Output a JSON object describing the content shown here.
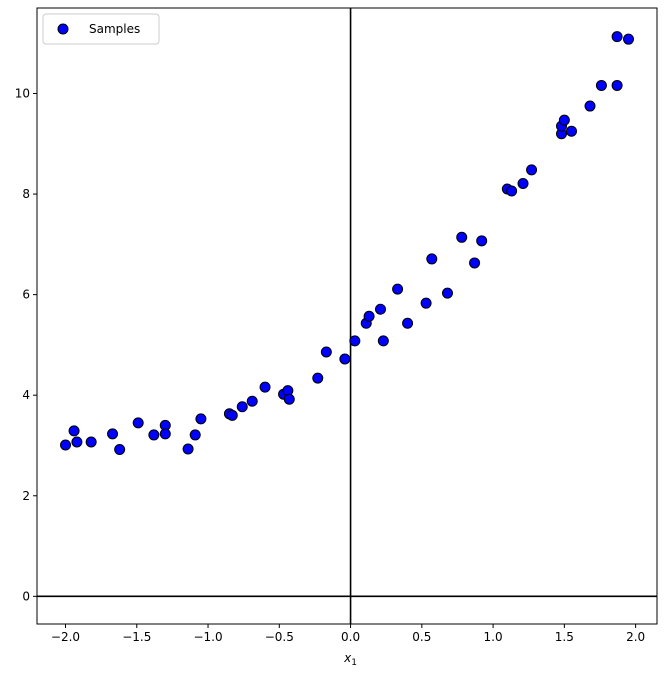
{
  "chart_data": {
    "type": "scatter",
    "title": "",
    "xlabel": "x",
    "xlabel_sub": "1",
    "ylabel": "",
    "xlim": [
      -2.2,
      2.15
    ],
    "ylim": [
      -0.55,
      11.7
    ],
    "xticks": [
      -2.0,
      -1.5,
      -1.0,
      -0.5,
      0.0,
      0.5,
      1.0,
      1.5,
      2.0
    ],
    "yticks": [
      0,
      2,
      4,
      6,
      8,
      10
    ],
    "grid": false,
    "reference_lines": {
      "x": 0,
      "y": 0
    },
    "legend": {
      "position": "top-left",
      "entries": [
        "Samples"
      ]
    },
    "series": [
      {
        "name": "Samples",
        "color": "#0000ff",
        "edgecolor": "#000000",
        "points": [
          [
            -2.0,
            3.01
          ],
          [
            -1.94,
            3.29
          ],
          [
            -1.92,
            3.07
          ],
          [
            -1.82,
            3.07
          ],
          [
            -1.67,
            3.23
          ],
          [
            -1.62,
            2.92
          ],
          [
            -1.49,
            3.45
          ],
          [
            -1.38,
            3.21
          ],
          [
            -1.3,
            3.4
          ],
          [
            -1.3,
            3.23
          ],
          [
            -1.14,
            2.93
          ],
          [
            -1.09,
            3.21
          ],
          [
            -1.05,
            3.53
          ],
          [
            -0.85,
            3.63
          ],
          [
            -0.83,
            3.6
          ],
          [
            -0.76,
            3.77
          ],
          [
            -0.69,
            3.88
          ],
          [
            -0.6,
            4.16
          ],
          [
            -0.47,
            4.02
          ],
          [
            -0.44,
            4.09
          ],
          [
            -0.43,
            3.92
          ],
          [
            -0.23,
            4.34
          ],
          [
            -0.17,
            4.86
          ],
          [
            -0.04,
            4.72
          ],
          [
            0.03,
            5.08
          ],
          [
            0.11,
            5.43
          ],
          [
            0.13,
            5.57
          ],
          [
            0.21,
            5.71
          ],
          [
            0.23,
            5.08
          ],
          [
            0.33,
            6.11
          ],
          [
            0.4,
            5.43
          ],
          [
            0.53,
            5.83
          ],
          [
            0.57,
            6.71
          ],
          [
            0.68,
            6.03
          ],
          [
            0.78,
            7.14
          ],
          [
            0.87,
            6.63
          ],
          [
            0.92,
            7.07
          ],
          [
            1.1,
            8.1
          ],
          [
            1.13,
            8.06
          ],
          [
            1.21,
            8.21
          ],
          [
            1.27,
            8.48
          ],
          [
            1.48,
            9.2
          ],
          [
            1.48,
            9.35
          ],
          [
            1.5,
            9.47
          ],
          [
            1.55,
            9.25
          ],
          [
            1.68,
            9.75
          ],
          [
            1.76,
            10.16
          ],
          [
            1.87,
            10.16
          ],
          [
            1.87,
            11.13
          ],
          [
            1.95,
            11.08
          ]
        ]
      }
    ]
  }
}
